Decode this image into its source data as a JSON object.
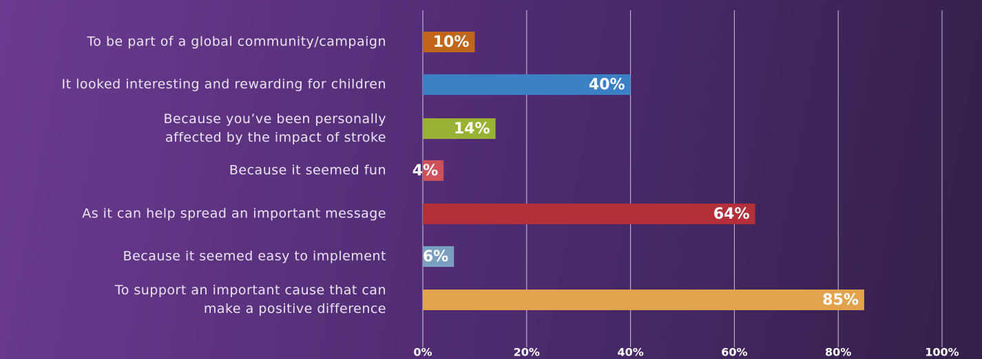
{
  "chart_data": {
    "type": "barh",
    "categories": [
      "To be part of a global community/campaign",
      "It looked interesting and rewarding for children",
      "Because you’ve been personally\naffected by the impact of stroke",
      "Because it seemed fun",
      "As it can help spread an important message",
      "Because it seemed easy to implement",
      "To support an important cause that can\nmake a positive difference"
    ],
    "values": [
      10,
      40,
      14,
      4,
      64,
      6,
      85
    ],
    "value_labels": [
      "10%",
      "40%",
      "14%",
      "4%",
      "64%",
      "6%",
      "85%"
    ],
    "colors": [
      "#c0661c",
      "#3b7fc4",
      "#9ab233",
      "#d0505a",
      "#b3303a",
      "#7a9fc0",
      "#e3a24c"
    ],
    "xlim": [
      0,
      100
    ],
    "xticks": [
      {
        "value": 0,
        "label": "0%"
      },
      {
        "value": 20,
        "label": "20%"
      },
      {
        "value": 40,
        "label": "40%"
      },
      {
        "value": 60,
        "label": "60%"
      },
      {
        "value": 80,
        "label": "80%"
      },
      {
        "value": 100,
        "label": "100%"
      }
    ],
    "grid": true
  }
}
